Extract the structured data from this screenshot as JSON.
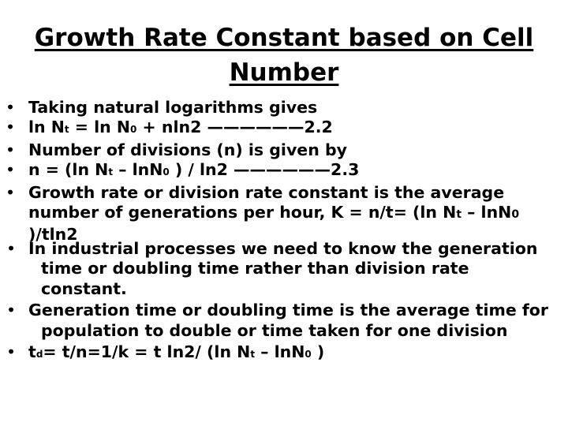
{
  "title": "Growth Rate Constant based on Cell Number",
  "bullets": [
    {
      "prefix": "Taking natural logarithms gives"
    },
    {
      "a": "ln N",
      "a_sub": "t",
      "b": " = ln N",
      "b_sub": "0",
      "c": " + nln2 ——————2.2"
    },
    {
      "prefix": "Number of divisions (n) is given by"
    },
    {
      "a": "n = (ln N",
      "a_sub": "t",
      "b": " – lnN",
      "b_sub": "0",
      "c": " ) / ln2 ——————2.3"
    },
    {
      "a": "Growth rate or division rate constant is the average number of generations per hour,  K = n/t= (ln N",
      "a_sub": "t",
      "b": " – lnN",
      "b_sub": "0",
      "c": " )/tln2"
    },
    {
      "prefix": "In industrial processes we need to know the generation time or doubling time rather than division rate constant."
    },
    {
      "prefix": "Generation time or doubling time is the average time for population to double or time taken for one division"
    },
    {
      "a": "t",
      "a_sub": "d",
      "b": "= t/n=1/k = t ln2/ (ln N",
      "b_sub": "t",
      "c": " – lnN",
      "c_sub": "0",
      "d": " )"
    }
  ]
}
